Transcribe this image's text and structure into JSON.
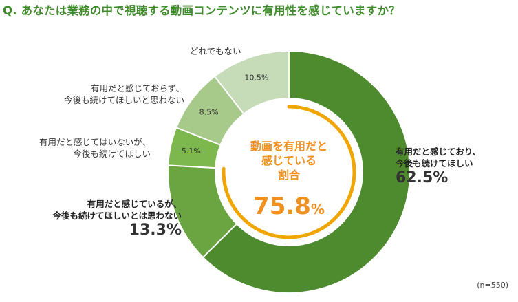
{
  "title": "Q. あなたは業務の中で視聴する動画コンテンツに有用性を感じていますか？",
  "note": "(n=550)",
  "colors": {
    "title": "#3f8a2b",
    "accent": "#f0a500",
    "accent_text": "#f0901e",
    "slices": [
      "#4e8a2e",
      "#6aa541",
      "#7cb84d",
      "#a7c98a",
      "#c6dbb8"
    ]
  },
  "center": {
    "line1": "動画を有用だと",
    "line2": "感じている",
    "line3": "割合",
    "value": "75.8",
    "unit": "%",
    "ring_fraction": 0.758
  },
  "chart_data": {
    "type": "pie",
    "style": "donut",
    "categories": [
      "有用だと感じており、今後も続けてほしい",
      "有用だと感じているが、今後も続けてほしいとは思わない",
      "有用だと感じてはいないが、今後も続けてほしい",
      "有用だと感じておらず、今後も続けてほしいと思わない",
      "どれでもない"
    ],
    "values": [
      62.5,
      13.3,
      5.1,
      8.5,
      10.5
    ],
    "value_labels": [
      "62.5%",
      "13.3%",
      "5.1%",
      "8.5%",
      "10.5%"
    ],
    "start_angle": "12 o'clock",
    "direction": "clockwise"
  },
  "labels": {
    "s0": {
      "line1": "有用だと感じており、",
      "line2": "今後も続けてほしい",
      "value": "62.5%"
    },
    "s1": {
      "line1": "有用だと感じているが、",
      "line2": "今後も続けてほしいとは思わない",
      "value": "13.3%"
    },
    "s2": {
      "line1": "有用だと感じてはいないが、",
      "line2": "今後も続けてほしい"
    },
    "s3": {
      "line1": "有用だと感じておらず、",
      "line2": "今後も続けてほしいと思わない"
    },
    "s4": {
      "line1": "どれでもない"
    }
  }
}
